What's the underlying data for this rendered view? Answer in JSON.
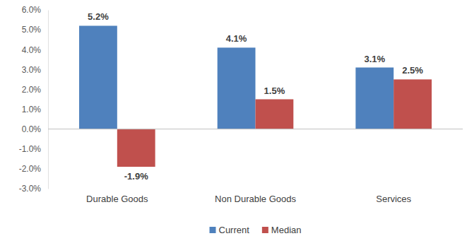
{
  "chart_data": {
    "type": "bar",
    "categories": [
      "Durable Goods",
      "Non Durable Goods",
      "Services"
    ],
    "series": [
      {
        "name": "Current",
        "color": "#4f81bd",
        "values": [
          5.2,
          4.1,
          3.1
        ],
        "value_labels": [
          "5.2%",
          "4.1%",
          "3.1%"
        ]
      },
      {
        "name": "Median",
        "color": "#c0504d",
        "values": [
          -1.9,
          1.5,
          2.5
        ],
        "value_labels": [
          "-1.9%",
          "1.5%",
          "2.5%"
        ]
      }
    ],
    "ylim": [
      -3,
      6
    ],
    "yticks": [
      {
        "value": -3,
        "label": "-3.0%"
      },
      {
        "value": -2,
        "label": "-2.0%"
      },
      {
        "value": -1,
        "label": "-1.0%"
      },
      {
        "value": 0,
        "label": "0.0%"
      },
      {
        "value": 1,
        "label": "1.0%"
      },
      {
        "value": 2,
        "label": "2.0%"
      },
      {
        "value": 3,
        "label": "3.0%"
      },
      {
        "value": 4,
        "label": "4.0%"
      },
      {
        "value": 5,
        "label": "5.0%"
      },
      {
        "value": 6,
        "label": "6.0%"
      }
    ],
    "grid": false,
    "legend": "bottom",
    "data_labels": true
  }
}
